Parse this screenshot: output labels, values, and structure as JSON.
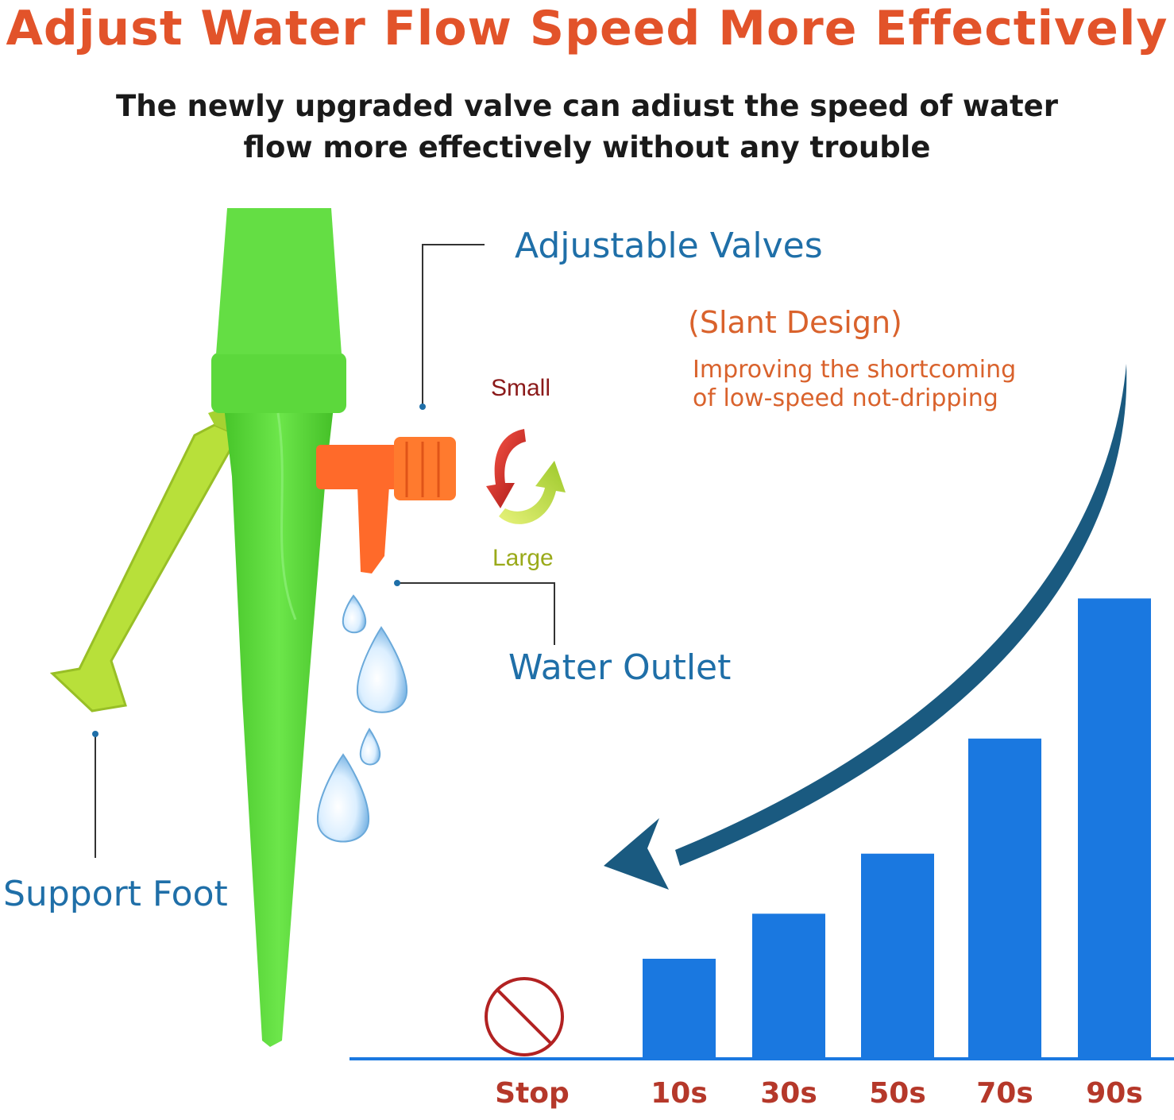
{
  "title": "Adjust Water Flow Speed More Effectively",
  "subtitle": "The newly upgraded valve can adiust the speed of water\nflow more effectively without any trouble",
  "labels": {
    "adjustable_valves": "Adjustable Valves",
    "water_outlet": "Water Outlet",
    "support_foot": "Support Foot",
    "slant_design": "(Slant Design)",
    "slant_note_line1": "Improving the shortcoming",
    "slant_note_line2": "of low-speed not-dripping",
    "small": "Small",
    "large": "Large"
  },
  "colors": {
    "title": "#e2532a",
    "subtitle": "#1a1a1a",
    "callout": "#1f6fa8",
    "note": "#d9622c",
    "bar": "#1a78e0",
    "stop_icon": "#b22222",
    "xlabel": "#b5382a",
    "spike_green": "#58d63a",
    "foot_yellow": "#b8e03a",
    "valve_orange": "#ff6a2a",
    "arrow": "#1a5a80"
  },
  "chart_data": {
    "type": "bar",
    "categories": [
      "Stop",
      "10s",
      "30s",
      "50s",
      "70s",
      "90s"
    ],
    "values": [
      0,
      1.0,
      1.45,
      2.05,
      3.2,
      4.6
    ]
  }
}
